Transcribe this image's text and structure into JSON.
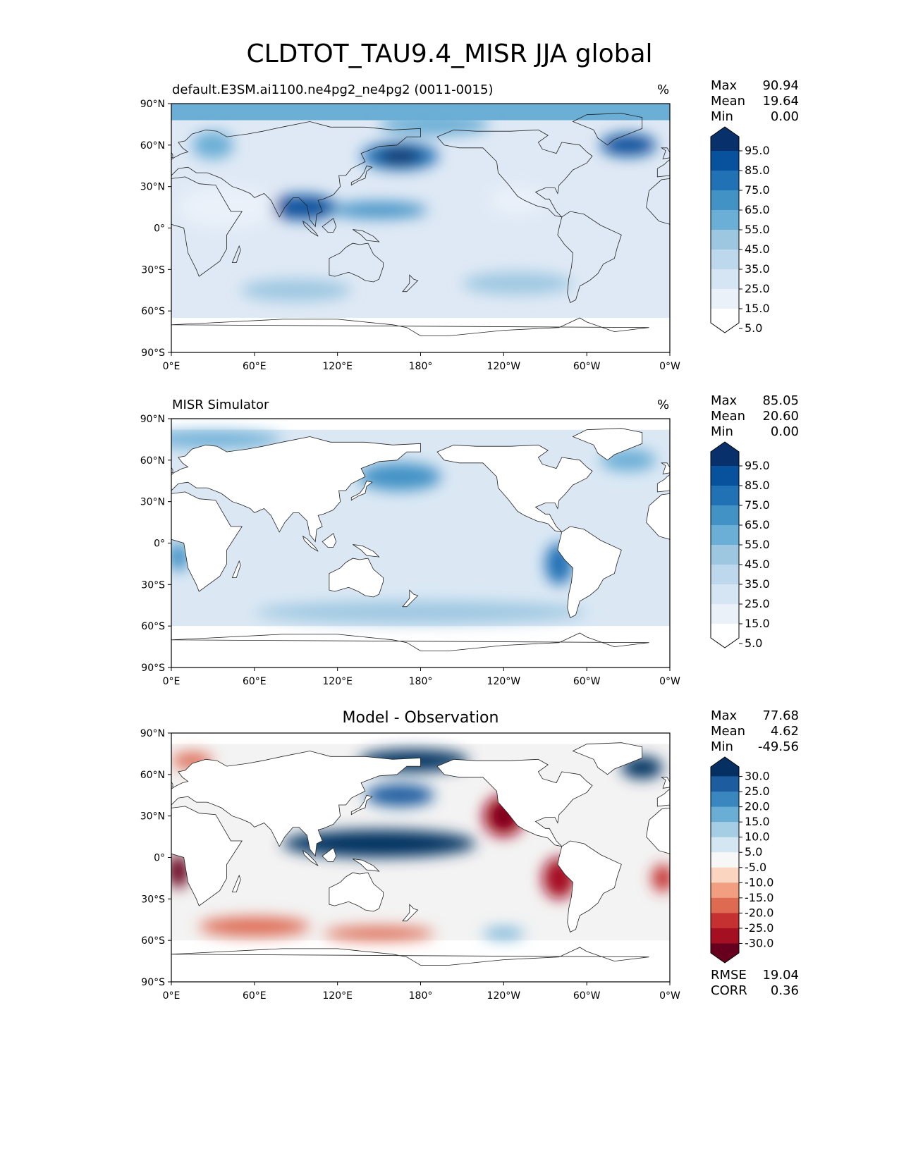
{
  "title": "CLDTOT_TAU9.4_MISR JJA global",
  "unit": "%",
  "axes": {
    "lat_ticks": [
      "90°N",
      "60°N",
      "30°N",
      "0°",
      "30°S",
      "60°S",
      "90°S"
    ],
    "lon_ticks": [
      "0°E",
      "60°E",
      "120°E",
      "180°",
      "120°W",
      "60°W",
      "0°W"
    ]
  },
  "panels": [
    {
      "id": "model",
      "title": "default.E3SM.ai1100.ne4pg2_ne4pg2 (0011-0015)",
      "stats": [
        {
          "label": "Max",
          "value": "90.94"
        },
        {
          "label": "Mean",
          "value": "19.64"
        },
        {
          "label": "Min",
          "value": "0.00"
        }
      ],
      "colorbar_labels": [
        "95.0",
        "85.0",
        "75.0",
        "65.0",
        "55.0",
        "45.0",
        "35.0",
        "25.0",
        "15.0",
        "5.0"
      ]
    },
    {
      "id": "obs",
      "title": "MISR Simulator",
      "stats": [
        {
          "label": "Max",
          "value": "85.05"
        },
        {
          "label": "Mean",
          "value": "20.60"
        },
        {
          "label": "Min",
          "value": "0.00"
        }
      ],
      "colorbar_labels": [
        "95.0",
        "85.0",
        "75.0",
        "65.0",
        "55.0",
        "45.0",
        "35.0",
        "25.0",
        "15.0",
        "5.0"
      ]
    },
    {
      "id": "diff",
      "title": "Model - Observation",
      "stats": [
        {
          "label": "Max",
          "value": "77.68"
        },
        {
          "label": "Mean",
          "value": "4.62"
        },
        {
          "label": "Min",
          "value": "-49.56"
        }
      ],
      "colorbar_labels": [
        "30.0",
        "25.0",
        "20.0",
        "15.0",
        "10.0",
        "5.0",
        "-5.0",
        "-10.0",
        "-15.0",
        "-20.0",
        "-25.0",
        "-30.0"
      ],
      "metrics": [
        {
          "label": "RMSE",
          "value": "19.04"
        },
        {
          "label": "CORR",
          "value": "0.36"
        }
      ]
    }
  ],
  "colors": {
    "blues": [
      "#ffffff",
      "#eaf1f9",
      "#d6e5f4",
      "#bdd7ec",
      "#9dc7e1",
      "#6baed6",
      "#4292c6",
      "#2171b5",
      "#08519c",
      "#08306b"
    ],
    "diverging": [
      "#67001f",
      "#a50f22",
      "#c53030",
      "#de6a52",
      "#f19f80",
      "#fbd5c0",
      "#f7f7f7",
      "#d4e6f1",
      "#a5cde3",
      "#6aaed6",
      "#3a87bf",
      "#1c5c9f",
      "#053061"
    ]
  },
  "maps": {
    "model": {
      "base": "#dfe9f5",
      "blobs": [
        {
          "lon": 165,
          "lat": 52,
          "rx": 28,
          "ry": 10,
          "level": 7
        },
        {
          "lon": 165,
          "lat": 52,
          "rx": 16,
          "ry": 6,
          "level": 9
        },
        {
          "lon": 95,
          "lat": 15,
          "rx": 25,
          "ry": 9,
          "level": 8
        },
        {
          "lon": 150,
          "lat": 13,
          "rx": 35,
          "ry": 6,
          "level": 6
        },
        {
          "lon": 30,
          "lat": 60,
          "rx": 15,
          "ry": 10,
          "level": 5
        },
        {
          "lon": 330,
          "lat": 60,
          "rx": 20,
          "ry": 8,
          "level": 8
        },
        {
          "lon": 190,
          "lat": 75,
          "rx": 40,
          "ry": 8,
          "level": 5
        },
        {
          "lon": 90,
          "lat": -45,
          "rx": 40,
          "ry": 8,
          "level": 4
        },
        {
          "lon": 250,
          "lat": -40,
          "rx": 40,
          "ry": 8,
          "level": 4
        },
        {
          "lon": 250,
          "lat": 20,
          "rx": 20,
          "ry": 10,
          "level": 1
        },
        {
          "lon": 40,
          "lat": 15,
          "rx": 35,
          "ry": 15,
          "level": 1
        }
      ]
    },
    "obs": {
      "base": "#dbe8f4",
      "blobs": [
        {
          "lon": 165,
          "lat": 48,
          "rx": 30,
          "ry": 10,
          "level": 6
        },
        {
          "lon": 5,
          "lat": -10,
          "rx": 8,
          "ry": 10,
          "level": 6
        },
        {
          "lon": 280,
          "lat": -15,
          "rx": 10,
          "ry": 15,
          "level": 7
        },
        {
          "lon": 330,
          "lat": 60,
          "rx": 20,
          "ry": 8,
          "level": 5
        },
        {
          "lon": 180,
          "lat": -50,
          "rx": 120,
          "ry": 8,
          "level": 4
        },
        {
          "lon": 30,
          "lat": 75,
          "rx": 50,
          "ry": 6,
          "level": 5
        }
      ]
    },
    "diff": {
      "base": "#f3f3f3",
      "blobs": [
        {
          "lon": 150,
          "lat": 10,
          "rx": 70,
          "ry": 10,
          "level": 12
        },
        {
          "lon": 175,
          "lat": 70,
          "rx": 40,
          "ry": 8,
          "level": 12
        },
        {
          "lon": 165,
          "lat": 45,
          "rx": 25,
          "ry": 8,
          "level": 11
        },
        {
          "lon": 240,
          "lat": 30,
          "rx": 15,
          "ry": 15,
          "level": 1
        },
        {
          "lon": 240,
          "lat": 30,
          "rx": 7,
          "ry": 8,
          "level": 0
        },
        {
          "lon": 280,
          "lat": -15,
          "rx": 12,
          "ry": 15,
          "level": 1
        },
        {
          "lon": 5,
          "lat": -10,
          "rx": 8,
          "ry": 12,
          "level": 0
        },
        {
          "lon": 355,
          "lat": -15,
          "rx": 8,
          "ry": 10,
          "level": 2
        },
        {
          "lon": 60,
          "lat": -50,
          "rx": 40,
          "ry": 7,
          "level": 3
        },
        {
          "lon": 150,
          "lat": -55,
          "rx": 40,
          "ry": 5,
          "level": 3
        },
        {
          "lon": 15,
          "lat": 70,
          "rx": 15,
          "ry": 6,
          "level": 3
        },
        {
          "lon": 340,
          "lat": 65,
          "rx": 15,
          "ry": 8,
          "level": 12
        },
        {
          "lon": 240,
          "lat": -55,
          "rx": 15,
          "ry": 4,
          "level": 9
        }
      ]
    }
  }
}
